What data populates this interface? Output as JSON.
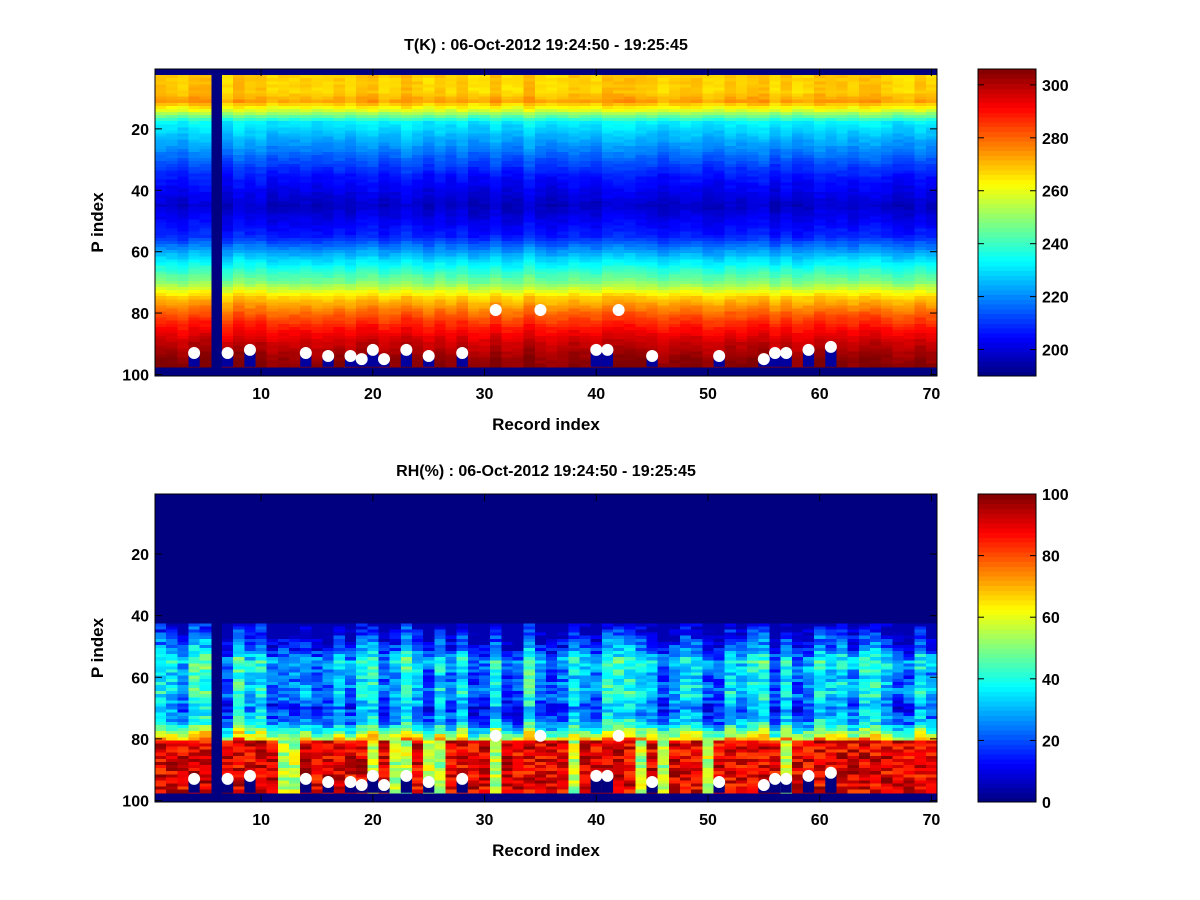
{
  "chart_data": [
    {
      "type": "heatmap",
      "title": "T(K) : 06-Oct-2012 19:24:50 - 19:25:45",
      "xlabel": "Record index",
      "ylabel": "P index",
      "xlim": [
        0.5,
        70.5
      ],
      "ylim": [
        0.5,
        100.5
      ],
      "y_reversed": true,
      "x_ticks": [
        10,
        20,
        30,
        40,
        50,
        60,
        70
      ],
      "y_ticks": [
        20,
        40,
        60,
        80,
        100
      ],
      "colormap": "jet",
      "clim": [
        190,
        306
      ],
      "colorbar_ticks": [
        200,
        220,
        240,
        260,
        280,
        300
      ],
      "field": "temperature",
      "profile": {
        "p": [
          3,
          8,
          11,
          14,
          18,
          25,
          35,
          45,
          55,
          62,
          70,
          75,
          80,
          85,
          90,
          95,
          97
        ],
        "v": [
          268,
          268,
          273,
          258,
          232,
          222,
          207,
          198,
          208,
          228,
          248,
          268,
          280,
          290,
          298,
          304,
          305
        ]
      },
      "missing_records": [
        6
      ],
      "missing_rows": [
        1,
        2,
        98,
        99,
        100
      ],
      "markers": [
        {
          "x": 4,
          "y": 93
        },
        {
          "x": 7,
          "y": 93
        },
        {
          "x": 9,
          "y": 92
        },
        {
          "x": 14,
          "y": 93
        },
        {
          "x": 16,
          "y": 94
        },
        {
          "x": 18,
          "y": 94
        },
        {
          "x": 19,
          "y": 95
        },
        {
          "x": 20,
          "y": 92
        },
        {
          "x": 21,
          "y": 95
        },
        {
          "x": 23,
          "y": 92
        },
        {
          "x": 25,
          "y": 94
        },
        {
          "x": 28,
          "y": 93
        },
        {
          "x": 31,
          "y": 79
        },
        {
          "x": 35,
          "y": 79
        },
        {
          "x": 40,
          "y": 92
        },
        {
          "x": 41,
          "y": 92
        },
        {
          "x": 42,
          "y": 79
        },
        {
          "x": 45,
          "y": 94
        },
        {
          "x": 51,
          "y": 94
        },
        {
          "x": 55,
          "y": 95
        },
        {
          "x": 56,
          "y": 93
        },
        {
          "x": 57,
          "y": 93
        },
        {
          "x": 59,
          "y": 92
        },
        {
          "x": 61,
          "y": 91
        }
      ]
    },
    {
      "type": "heatmap",
      "title": "RH(%) : 06-Oct-2012 19:24:50 - 19:25:45",
      "xlabel": "Record index",
      "ylabel": "P index",
      "xlim": [
        0.5,
        70.5
      ],
      "ylim": [
        0.5,
        100.5
      ],
      "y_reversed": true,
      "x_ticks": [
        10,
        20,
        30,
        40,
        50,
        60,
        70
      ],
      "y_ticks": [
        20,
        40,
        60,
        80,
        100
      ],
      "colormap": "jet",
      "clim": [
        0,
        100
      ],
      "colorbar_ticks": [
        0,
        20,
        40,
        60,
        80,
        100
      ],
      "field": "humidity",
      "profile": {
        "p": [
          1,
          42,
          45,
          50,
          55,
          60,
          65,
          70,
          75,
          79,
          82,
          84,
          90,
          97
        ],
        "v": [
          0,
          0,
          8,
          18,
          35,
          28,
          32,
          22,
          30,
          55,
          85,
          95,
          97,
          97
        ]
      },
      "missing_records": [
        6
      ],
      "missing_rows": [
        98,
        99,
        100
      ],
      "markers": [
        {
          "x": 4,
          "y": 93
        },
        {
          "x": 7,
          "y": 93
        },
        {
          "x": 9,
          "y": 92
        },
        {
          "x": 14,
          "y": 93
        },
        {
          "x": 16,
          "y": 94
        },
        {
          "x": 18,
          "y": 94
        },
        {
          "x": 19,
          "y": 95
        },
        {
          "x": 20,
          "y": 92
        },
        {
          "x": 21,
          "y": 95
        },
        {
          "x": 23,
          "y": 92
        },
        {
          "x": 25,
          "y": 94
        },
        {
          "x": 28,
          "y": 93
        },
        {
          "x": 31,
          "y": 79
        },
        {
          "x": 35,
          "y": 79
        },
        {
          "x": 40,
          "y": 92
        },
        {
          "x": 41,
          "y": 92
        },
        {
          "x": 42,
          "y": 79
        },
        {
          "x": 45,
          "y": 94
        },
        {
          "x": 51,
          "y": 94
        },
        {
          "x": 55,
          "y": 95
        },
        {
          "x": 56,
          "y": 93
        },
        {
          "x": 57,
          "y": 93
        },
        {
          "x": 59,
          "y": 92
        },
        {
          "x": 61,
          "y": 91
        }
      ]
    }
  ]
}
